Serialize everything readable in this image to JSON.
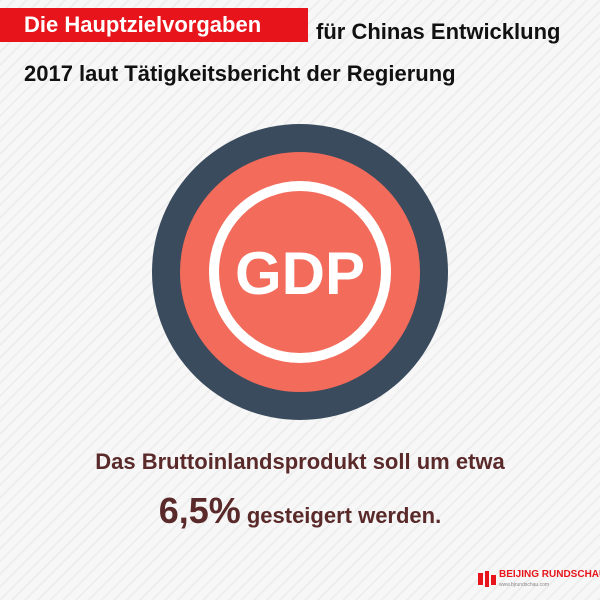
{
  "colors": {
    "accent_red": "#e8141b",
    "ring_dark": "#3b4b5e",
    "disc_coral": "#f26b5b",
    "text_brown": "#5a2a2a"
  },
  "title": {
    "highlight": "Die Hauptzielvorgaben",
    "rest": "für Chinas Entwicklung",
    "line2": "2017 laut Tätigkeitsbericht der Regierung"
  },
  "badge": {
    "label": "GDP"
  },
  "statement": {
    "line1": "Das Bruttoinlandsprodukt soll um etwa",
    "percentage": "6,5%",
    "line2_rest": "gesteigert werden."
  },
  "logo": {
    "text": "BEIJING RUNDSCHAU",
    "url": "www.bjrundschau.com"
  }
}
